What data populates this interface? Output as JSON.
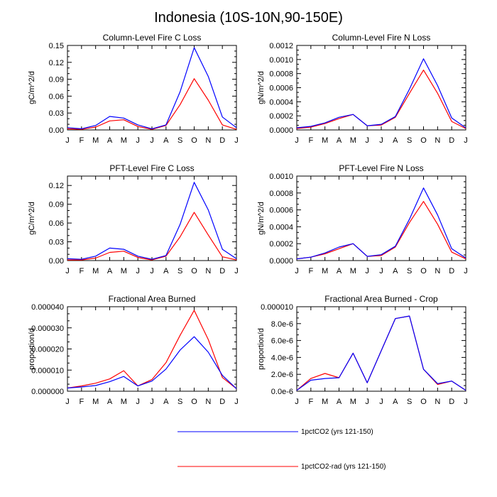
{
  "title": "Indonesia (10S-10N,90-150E)",
  "legend": [
    {
      "label": "1pctCO2 (yrs 121-150)",
      "color": "#0000ff"
    },
    {
      "label": "1pctCO2-rad (yrs 121-150)",
      "color": "#ff0000"
    }
  ],
  "chart_data": [
    {
      "type": "line",
      "title": "Column-Level Fire C Loss",
      "ylabel": "gC/m^2/d",
      "categories": [
        "J",
        "F",
        "M",
        "A",
        "M",
        "J",
        "J",
        "A",
        "S",
        "O",
        "N",
        "D",
        "J"
      ],
      "ylim": [
        0,
        0.15
      ],
      "yticks": [
        "0.00",
        "0.03",
        "0.06",
        "0.09",
        "0.12",
        "0.15"
      ],
      "ytick_values": [
        0,
        0.03,
        0.06,
        0.09,
        0.12,
        0.15
      ],
      "series": [
        {
          "name": "1pctCO2 (yrs 121-150)",
          "color": "#0000ff",
          "values": [
            0.004,
            0.002,
            0.008,
            0.024,
            0.021,
            0.009,
            0.002,
            0.009,
            0.068,
            0.146,
            0.095,
            0.023,
            0.004
          ]
        },
        {
          "name": "1pctCO2-rad (yrs 121-150)",
          "color": "#ff0000",
          "values": [
            0.002,
            0.001,
            0.005,
            0.016,
            0.018,
            0.006,
            0.001,
            0.008,
            0.045,
            0.091,
            0.053,
            0.009,
            0.001
          ]
        }
      ]
    },
    {
      "type": "line",
      "title": "Column-Level Fire N Loss",
      "ylabel": "gN/m^2/d",
      "categories": [
        "J",
        "F",
        "M",
        "A",
        "M",
        "J",
        "J",
        "A",
        "S",
        "O",
        "N",
        "D",
        "J"
      ],
      "ylim": [
        0,
        0.0012
      ],
      "yticks": [
        "0.0000",
        "0.0002",
        "0.0004",
        "0.0006",
        "0.0008",
        "0.0010",
        "0.0012"
      ],
      "ytick_values": [
        0,
        0.0002,
        0.0004,
        0.0006,
        0.0008,
        0.001,
        0.0012
      ],
      "series": [
        {
          "name": "1pctCO2 (yrs 121-150)",
          "color": "#0000ff",
          "values": [
            3e-05,
            5e-05,
            0.0001,
            0.00018,
            0.00022,
            6e-05,
            8e-05,
            0.00019,
            0.00058,
            0.00101,
            0.00063,
            0.00017,
            3e-05
          ]
        },
        {
          "name": "1pctCO2-rad (yrs 121-150)",
          "color": "#ff0000",
          "values": [
            2e-05,
            4e-05,
            9e-05,
            0.00016,
            0.00022,
            6e-05,
            7e-05,
            0.00018,
            0.00052,
            0.00085,
            0.00052,
            0.00012,
            2e-05
          ]
        }
      ]
    },
    {
      "type": "line",
      "title": "PFT-Level Fire C Loss",
      "ylabel": "gC/m^2/d",
      "categories": [
        "J",
        "F",
        "M",
        "A",
        "M",
        "J",
        "J",
        "A",
        "S",
        "O",
        "N",
        "D",
        "J"
      ],
      "ylim": [
        0,
        0.135
      ],
      "yticks": [
        "0.00",
        "0.03",
        "0.06",
        "0.09",
        "0.12"
      ],
      "ytick_values": [
        0,
        0.03,
        0.06,
        0.09,
        0.12
      ],
      "series": [
        {
          "name": "1pctCO2 (yrs 121-150)",
          "color": "#0000ff",
          "values": [
            0.003,
            0.002,
            0.007,
            0.02,
            0.018,
            0.007,
            0.002,
            0.008,
            0.058,
            0.125,
            0.081,
            0.018,
            0.003
          ]
        },
        {
          "name": "1pctCO2-rad (yrs 121-150)",
          "color": "#ff0000",
          "values": [
            0.001,
            0.001,
            0.004,
            0.013,
            0.015,
            0.005,
            0.001,
            0.007,
            0.038,
            0.077,
            0.041,
            0.006,
            0.001
          ]
        }
      ]
    },
    {
      "type": "line",
      "title": "PFT-Level Fire N Loss",
      "ylabel": "gN/m^2/d",
      "categories": [
        "J",
        "F",
        "M",
        "A",
        "M",
        "J",
        "J",
        "A",
        "S",
        "O",
        "N",
        "D",
        "J"
      ],
      "ylim": [
        0,
        0.001
      ],
      "yticks": [
        "0.0000",
        "0.0002",
        "0.0004",
        "0.0006",
        "0.0008",
        "0.0010"
      ],
      "ytick_values": [
        0,
        0.0002,
        0.0004,
        0.0006,
        0.0008,
        0.001
      ],
      "series": [
        {
          "name": "1pctCO2 (yrs 121-150)",
          "color": "#0000ff",
          "values": [
            2e-05,
            4e-05,
            9e-05,
            0.00016,
            0.0002,
            5e-05,
            7e-05,
            0.00017,
            0.00049,
            0.00086,
            0.00054,
            0.00014,
            3e-05
          ]
        },
        {
          "name": "1pctCO2-rad (yrs 121-150)",
          "color": "#ff0000",
          "values": [
            2e-05,
            4e-05,
            8e-05,
            0.00014,
            0.0002,
            5e-05,
            6e-05,
            0.00016,
            0.00045,
            0.0007,
            0.00043,
            0.0001,
            2e-05
          ]
        }
      ]
    },
    {
      "type": "line",
      "title": "Fractional Area Burned",
      "ylabel": "proportion/d",
      "categories": [
        "J",
        "F",
        "M",
        "A",
        "M",
        "J",
        "J",
        "A",
        "S",
        "O",
        "N",
        "D",
        "J"
      ],
      "ylim": [
        0,
        4e-05
      ],
      "yticks": [
        "0.000000",
        "0.000010",
        "0.000020",
        "0.000030",
        "0.000040"
      ],
      "ytick_values": [
        0,
        1e-05,
        2e-05,
        3e-05,
        4e-05
      ],
      "series": [
        {
          "name": "1pctCO2 (yrs 121-150)",
          "color": "#0000ff",
          "values": [
            1.5e-06,
            2e-06,
            2.7e-06,
            4.5e-06,
            7e-06,
            2.5e-06,
            4.8e-06,
            1.05e-05,
            1.95e-05,
            2.58e-05,
            1.85e-05,
            7.5e-06,
            1.2e-06
          ]
        },
        {
          "name": "1pctCO2-rad (yrs 121-150)",
          "color": "#ff0000",
          "values": [
            1.5e-06,
            2.5e-06,
            3.8e-06,
            5.8e-06,
            9.7e-06,
            2.5e-06,
            5.5e-06,
            1.35e-05,
            2.65e-05,
            3.83e-05,
            2.45e-05,
            6.5e-06,
            1.2e-06
          ]
        }
      ]
    },
    {
      "type": "line",
      "title": "Fractional Area Burned - Crop",
      "ylabel": "proportion/d",
      "categories": [
        "J",
        "F",
        "M",
        "A",
        "M",
        "J",
        "J",
        "A",
        "S",
        "O",
        "N",
        "D",
        "J"
      ],
      "ylim": [
        0,
        1e-05
      ],
      "yticks": [
        "0.0e-6",
        "2.0e-6",
        "4.0e-6",
        "6.0e-6",
        "8.0e-6",
        "0.000010"
      ],
      "ytick_values": [
        0,
        2e-06,
        4e-06,
        6e-06,
        8e-06,
        1e-05
      ],
      "series": [
        {
          "name": "1pctCO2 (yrs 121-150)",
          "color": "#0000ff",
          "values": [
            1e-07,
            1.3e-06,
            1.5e-06,
            1.6e-06,
            4.5e-06,
            1e-06,
            4.8e-06,
            8.6e-06,
            8.9e-06,
            2.6e-06,
            9e-07,
            1.2e-06,
            1e-07
          ]
        },
        {
          "name": "1pctCO2-rad (yrs 121-150)",
          "color": "#ff0000",
          "values": [
            1e-07,
            1.5e-06,
            2.1e-06,
            1.6e-06,
            4.5e-06,
            1e-06,
            4.8e-06,
            8.6e-06,
            8.9e-06,
            2.6e-06,
            8e-07,
            1.2e-06,
            1e-07
          ]
        }
      ]
    }
  ]
}
